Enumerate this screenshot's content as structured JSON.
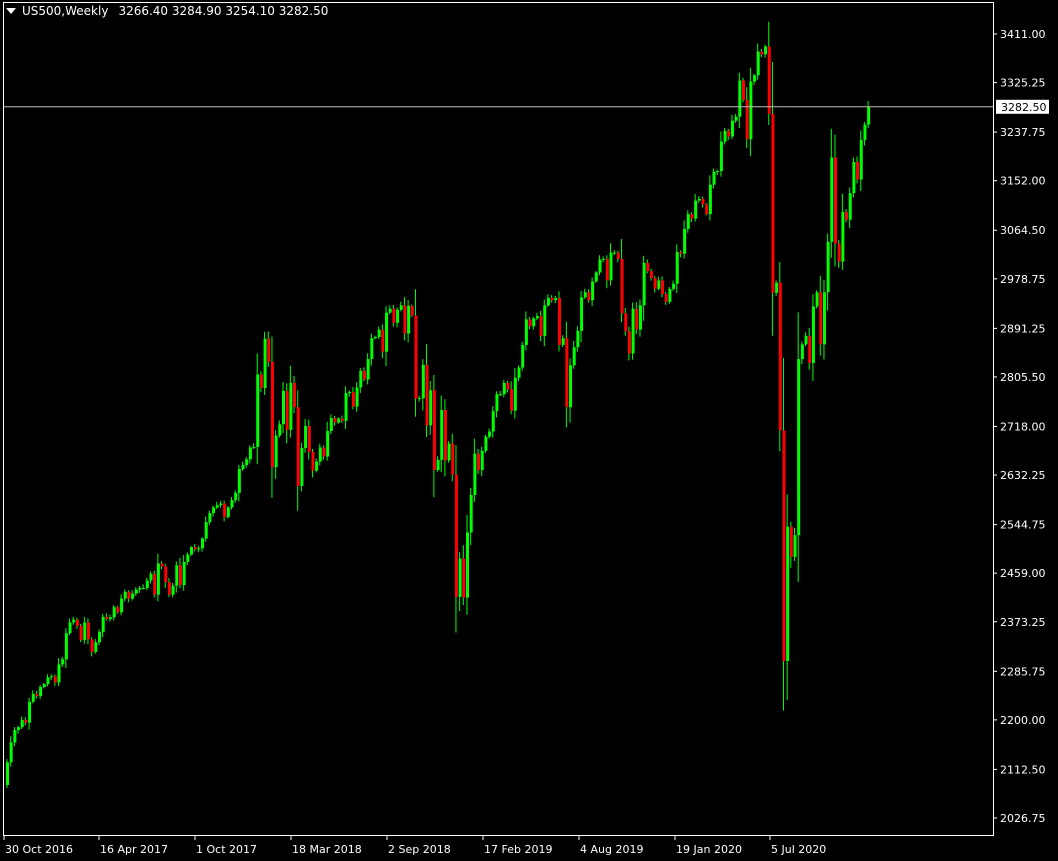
{
  "header": {
    "symbol_timeframe": "US500,Weekly",
    "ohlc_text": "3266.40 3284.90 3254.10 3282.50"
  },
  "current_price_label": "3282.50",
  "colors": {
    "background": "#000000",
    "axis": "#ffffff",
    "bull": "#00ff00",
    "bear": "#ff0000",
    "wick": "#00ff00",
    "price_line": "#c0c0c0"
  },
  "chart_data": {
    "type": "candlestick",
    "title": "US500,Weekly",
    "y_ticks": [
      "3411.00",
      "3325.25",
      "3237.75",
      "3152.00",
      "3064.50",
      "2978.75",
      "2891.25",
      "2805.50",
      "2718.00",
      "2632.25",
      "2544.75",
      "2459.00",
      "2373.25",
      "2285.75",
      "2200.00",
      "2112.50",
      "2026.75"
    ],
    "x_ticks": [
      "30 Oct 2016",
      "16 Apr 2017",
      "1 Oct 2017",
      "18 Mar 2018",
      "2 Sep 2018",
      "17 Feb 2019",
      "4 Aug 2019",
      "19 Jan 2020",
      "5 Jul 2020"
    ],
    "ylim": [
      2010,
      3435
    ],
    "current_price": 3282.5,
    "closes": [
      2125,
      2160,
      2182,
      2187,
      2200,
      2195,
      2232,
      2246,
      2242,
      2258,
      2263,
      2275,
      2277,
      2266,
      2298,
      2307,
      2353,
      2372,
      2377,
      2366,
      2341,
      2372,
      2342,
      2320,
      2337,
      2355,
      2382,
      2378,
      2381,
      2399,
      2390,
      2414,
      2426,
      2414,
      2423,
      2430,
      2433,
      2433,
      2446,
      2458,
      2421,
      2476,
      2471,
      2443,
      2421,
      2437,
      2473,
      2438,
      2479,
      2492,
      2505,
      2501,
      2503,
      2520,
      2549,
      2565,
      2575,
      2579,
      2582,
      2558,
      2575,
      2588,
      2601,
      2643,
      2650,
      2660,
      2681,
      2682,
      2810,
      2786,
      2873,
      2832,
      2646,
      2702,
      2722,
      2781,
      2712,
      2795,
      2752,
      2613,
      2680,
      2719,
      2673,
      2640,
      2656,
      2681,
      2665,
      2710,
      2733,
      2725,
      2732,
      2728,
      2777,
      2779,
      2753,
      2787,
      2816,
      2801,
      2837,
      2874,
      2876,
      2889,
      2850,
      2919,
      2926,
      2901,
      2924,
      2932,
      2882,
      2931,
      2914,
      2767,
      2768,
      2827,
      2720,
      2782,
      2641,
      2659,
      2747,
      2658,
      2688,
      2633,
      2417,
      2485,
      2416,
      2531,
      2597,
      2670,
      2641,
      2675,
      2700,
      2709,
      2745,
      2775,
      2775,
      2795,
      2784,
      2746,
      2804,
      2822,
      2862,
      2907,
      2895,
      2909,
      2913,
      2878,
      2932,
      2945,
      2941,
      2945,
      2862,
      2874,
      2752,
      2826,
      2858,
      2887,
      2946,
      2955,
      2941,
      2974,
      2990,
      3013,
      3014,
      2976,
      3025,
      3025,
      3014,
      2918,
      2886,
      2847,
      2926,
      2889,
      2932,
      3007,
      2992,
      2980,
      2961,
      2976,
      2952,
      2938,
      2961,
      2970,
      3026,
      3023,
      3067,
      3093,
      3085,
      3117,
      3120,
      3110,
      3093,
      3145,
      3168,
      3169,
      3221,
      3240,
      3230,
      3258,
      3265,
      3329,
      3295,
      3225,
      3327,
      3338,
      3380,
      3375,
      3389,
      3270,
      2954,
      2972,
      2711,
      2304,
      2541,
      2488,
      2526,
      2837,
      2863,
      2878,
      2830,
      2930,
      2955,
      2863,
      2955,
      3044,
      3193,
      3041,
      3009,
      3097,
      3083,
      3130,
      3185,
      3154,
      3224,
      3251,
      3282
    ],
    "xlabel": "",
    "ylabel": ""
  }
}
